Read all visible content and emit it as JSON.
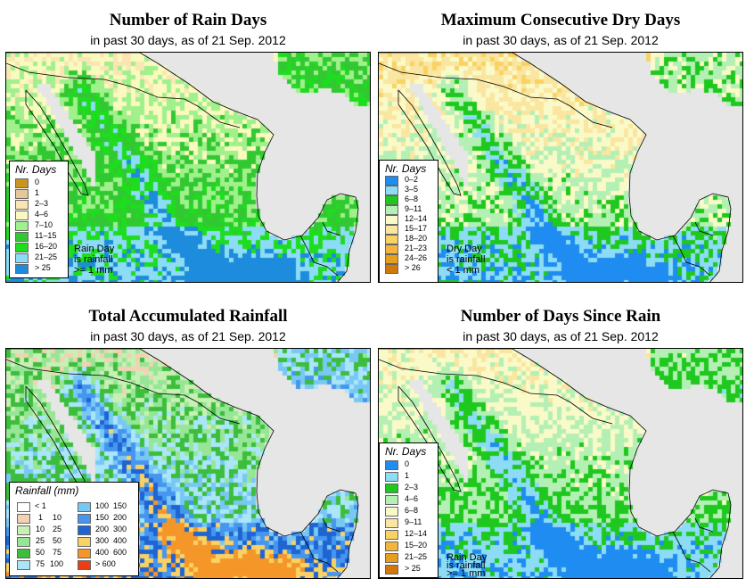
{
  "panels": [
    {
      "title": "Number of Rain Days",
      "subtitle": "in past 30 days, as of  21 Sep. 2012",
      "legend_title": "Nr. Days",
      "legend": [
        {
          "label": "0",
          "color": "#c8961e"
        },
        {
          "label": "1",
          "color": "#e6c896"
        },
        {
          "label": "2–3",
          "color": "#fae6b4"
        },
        {
          "label": "4–6",
          "color": "#fafabe"
        },
        {
          "label": "7–10",
          "color": "#a0f08c"
        },
        {
          "label": "11–15",
          "color": "#32c832"
        },
        {
          "label": "16–20",
          "color": "#1edc1e"
        },
        {
          "label": "21–25",
          "color": "#8cdcf5"
        },
        {
          "label": ">  25",
          "color": "#1e8cdc"
        }
      ],
      "note": [
        "Rain Day",
        "is rainfall",
        ">= 1 mm"
      ]
    },
    {
      "title": "Maximum Consecutive Dry Days",
      "subtitle": "in past 30 days, as of  21 Sep. 2012",
      "legend_title": "Nr. Days",
      "legend": [
        {
          "label": "0–2",
          "color": "#1e8cf0"
        },
        {
          "label": "3–5",
          "color": "#8cdcf5"
        },
        {
          "label": "6–8",
          "color": "#1ec81e"
        },
        {
          "label": "9–11",
          "color": "#b4f0b4"
        },
        {
          "label": "12–14",
          "color": "#fafac8"
        },
        {
          "label": "15–17",
          "color": "#fae6a0"
        },
        {
          "label": "18–20",
          "color": "#fad264"
        },
        {
          "label": "21–23",
          "color": "#f5b43c"
        },
        {
          "label": "24–26",
          "color": "#e6a01e"
        },
        {
          "label": ">  26",
          "color": "#d2780a"
        }
      ],
      "note": [
        "Dry Day",
        "is rainfall",
        "< 1 mm"
      ]
    },
    {
      "title": "Total Accumulated Rainfall",
      "subtitle": "in past 30 days, as of  21 Sep. 2012",
      "legend_title": "Rainfall (mm)",
      "legend_left": [
        {
          "from": "<  1",
          "to": "",
          "color": "#ffffff"
        },
        {
          "from": "1",
          "to": "10",
          "color": "#f0d2b4"
        },
        {
          "from": "10",
          "to": "25",
          "color": "#c8f0b4"
        },
        {
          "from": "25",
          "to": "50",
          "color": "#96e696"
        },
        {
          "from": "50",
          "to": "75",
          "color": "#3cbe3c"
        },
        {
          "from": "75",
          "to": "100",
          "color": "#aae6fa"
        }
      ],
      "legend_right": [
        {
          "from": "100",
          "to": "150",
          "color": "#78c8f5"
        },
        {
          "from": "150",
          "to": "200",
          "color": "#4696f0"
        },
        {
          "from": "200",
          "to": "300",
          "color": "#1e64d2"
        },
        {
          "from": "300",
          "to": "400",
          "color": "#fad264"
        },
        {
          "from": "400",
          "to": "600",
          "color": "#f59628"
        },
        {
          "from": ">  600",
          "to": "",
          "color": "#f03c14"
        }
      ]
    },
    {
      "title": "Number of Days Since Rain",
      "subtitle": "in past 30 days, as of  21 Sep. 2012",
      "legend_title": "Nr. Days",
      "legend": [
        {
          "label": "0",
          "color": "#1e8cf0"
        },
        {
          "label": "1",
          "color": "#8cdcf5"
        },
        {
          "label": "2–3",
          "color": "#1ec81e"
        },
        {
          "label": "4–6",
          "color": "#b4f0b4"
        },
        {
          "label": "6–8",
          "color": "#fafac8"
        },
        {
          "label": "9–11",
          "color": "#fae6a0"
        },
        {
          "label": "12–14",
          "color": "#fad264"
        },
        {
          "label": "15–20",
          "color": "#f5b43c"
        },
        {
          "label": "21–25",
          "color": "#e6a01e"
        },
        {
          "label": ">  25",
          "color": "#d2780a"
        }
      ],
      "note": [
        "Rain Day",
        "is rainfall",
        ">= 1 mm"
      ]
    }
  ]
}
